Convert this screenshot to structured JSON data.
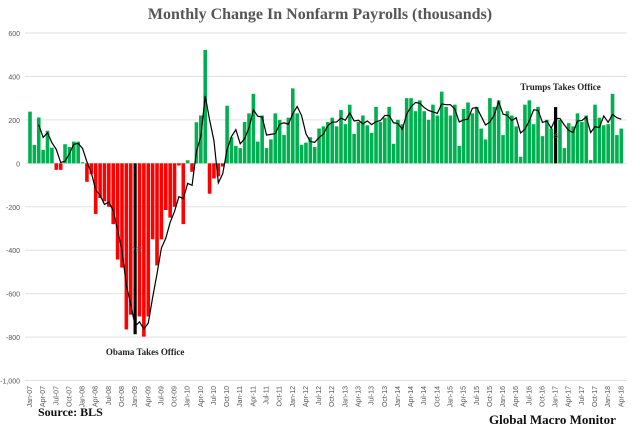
{
  "chart_data": {
    "type": "bar",
    "title": "Monthly Change In Nonfarm Payrolls (thousands)",
    "xlabel": "",
    "ylabel": "",
    "ylim": [
      -1000,
      600
    ],
    "yticks": [
      600,
      400,
      200,
      0,
      -200,
      -400,
      -600,
      -800,
      -1000
    ],
    "ytick_labels": [
      "600",
      "400",
      "200",
      "0",
      "-200",
      "-400",
      "-600",
      "-800",
      "-1,000"
    ],
    "grid": true,
    "start_month": "Jan-07",
    "end_month": "Apr-18",
    "xtick_labels": [
      "Jan-07",
      "Apr-07",
      "Jul-07",
      "Oct-07",
      "Jan-08",
      "Apr-08",
      "Jul-08",
      "Oct-08",
      "Jan-09",
      "Apr-09",
      "Jul-09",
      "Oct-09",
      "Jan-10",
      "Apr-10",
      "Jul-10",
      "Oct-10",
      "Jan-11",
      "Apr-11",
      "Jul-11",
      "Oct-11",
      "Jan-12",
      "Apr-12",
      "Jul-12",
      "Oct-12",
      "Jan-13",
      "Apr-13",
      "Jul-13",
      "Oct-13",
      "Jan-14",
      "Apr-14",
      "Jul-14",
      "Oct-14",
      "Jan-15",
      "Apr-15",
      "Jul-15",
      "Oct-15",
      "Jan-16",
      "Apr-16",
      "Jul-16",
      "Oct-16",
      "Jan-17",
      "Apr-17",
      "Jul-17",
      "Oct-17",
      "Jan-18",
      "Apr-18"
    ],
    "values": [
      238,
      85,
      211,
      62,
      150,
      72,
      -30,
      -30,
      88,
      75,
      100,
      100,
      5,
      -85,
      -50,
      -233,
      -160,
      -175,
      -200,
      -280,
      -443,
      -480,
      -765,
      -697,
      -787,
      -705,
      -798,
      -705,
      -350,
      -470,
      -350,
      -215,
      -250,
      -200,
      -10,
      -280,
      14,
      -39,
      189,
      220,
      522,
      -140,
      -70,
      -60,
      -15,
      265,
      120,
      80,
      70,
      190,
      230,
      320,
      100,
      220,
      70,
      110,
      230,
      200,
      130,
      210,
      345,
      230,
      85,
      95,
      120,
      75,
      160,
      170,
      190,
      210,
      170,
      245,
      180,
      270,
      135,
      190,
      220,
      175,
      140,
      260,
      190,
      210,
      260,
      90,
      200,
      180,
      300,
      300,
      240,
      290,
      240,
      200,
      270,
      220,
      330,
      260,
      220,
      270,
      80,
      250,
      280,
      230,
      260,
      160,
      110,
      300,
      260,
      290,
      130,
      240,
      220,
      170,
      30,
      270,
      290,
      180,
      260,
      125,
      200,
      160,
      259,
      200,
      70,
      185,
      170,
      230,
      190,
      220,
      15,
      270,
      210,
      175,
      180,
      320,
      130,
      160
    ],
    "colors": {
      "positive": "#00b050",
      "negative": "#ff0000",
      "highlight": "#000000",
      "line": "#000000"
    },
    "line_series": {
      "type": "moving-average",
      "window": 3
    },
    "annotations": [
      {
        "text": "Obama  Takes Office",
        "month": "Jan-09",
        "value_label": "-787"
      },
      {
        "text": "Trumps  Takes Office",
        "month": "Jan-17",
        "value_label": "259"
      }
    ]
  },
  "footer": {
    "source": "Source:  BLS",
    "brand": "Global Macro Monitor"
  }
}
